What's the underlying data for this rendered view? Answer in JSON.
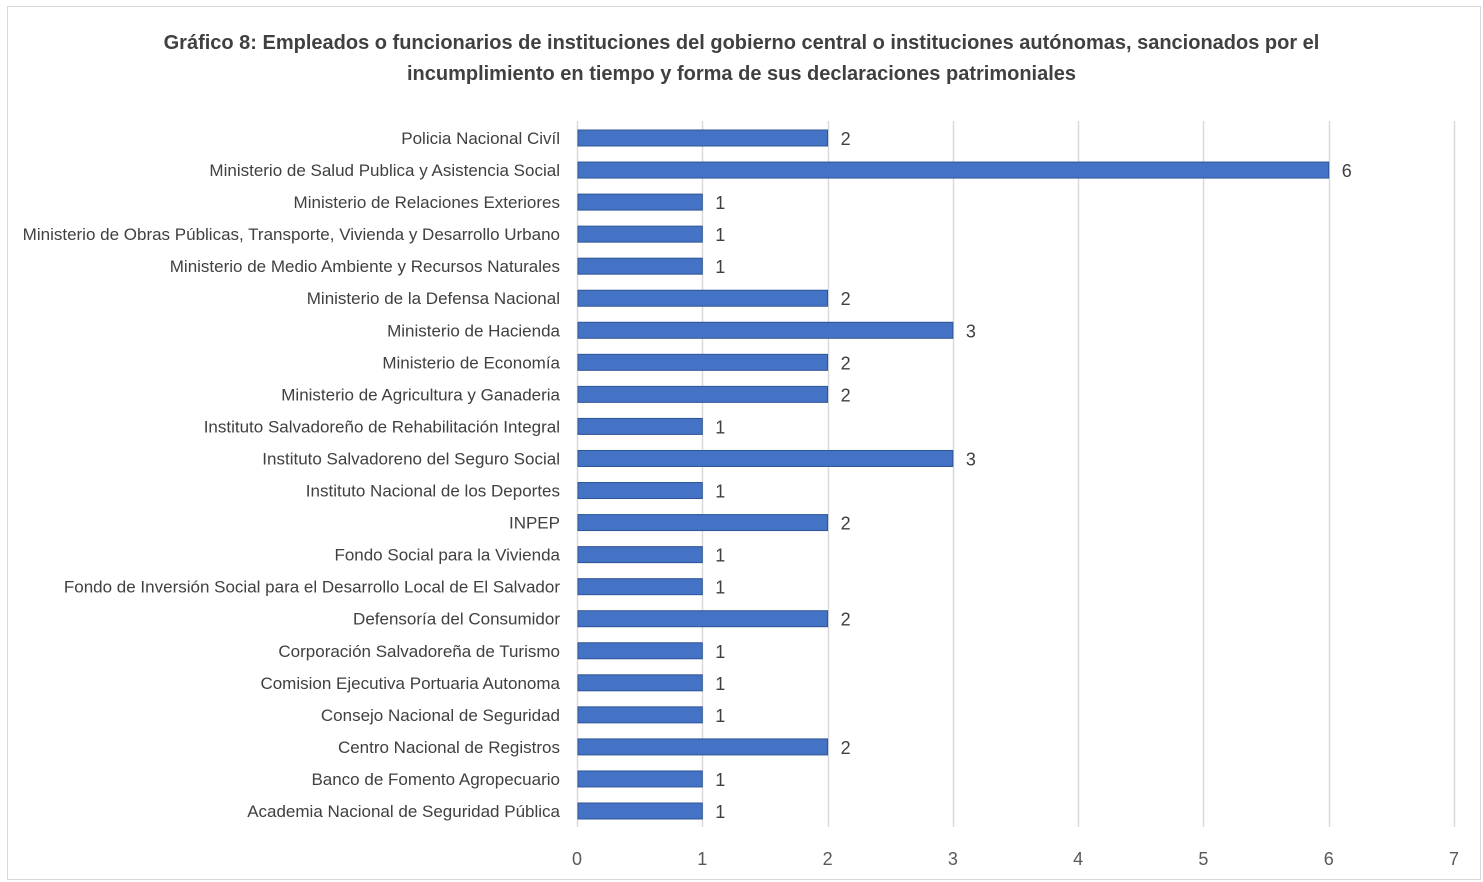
{
  "chart_data": {
    "type": "bar",
    "orientation": "horizontal",
    "title": "Gráfico 8: Empleados o funcionarios de instituciones del gobierno central o instituciones autónomas, sancionados por el incumplimiento en tiempo y forma de sus declaraciones patrimoniales",
    "categories": [
      "Policia Nacional Civíl",
      "Ministerio de Salud Publica y Asistencia Social",
      "Ministerio de Relaciones Exteriores",
      "Ministerio de Obras Públicas, Transporte, Vivienda y Desarrollo Urbano",
      "Ministerio de Medio Ambiente y Recursos Naturales",
      "Ministerio de la Defensa Nacional",
      "Ministerio de Hacienda",
      "Ministerio de Economía",
      "Ministerio de Agricultura y Ganaderia",
      "Instituto Salvadoreño de Rehabilitación Integral",
      "Instituto Salvadoreno del Seguro Social",
      "Instituto Nacional de los Deportes",
      "INPEP",
      "Fondo Social para la Vivienda",
      "Fondo de Inversión Social para el Desarrollo Local de El Salvador",
      "Defensoría del Consumidor",
      "Corporación Salvadoreña de Turismo",
      "Comision Ejecutiva Portuaria Autonoma",
      "Consejo Nacional de Seguridad",
      "Centro Nacional de Registros",
      "Banco de Fomento Agropecuario",
      "Academia Nacional de Seguridad Pública"
    ],
    "values": [
      2,
      6,
      1,
      1,
      1,
      2,
      3,
      2,
      2,
      1,
      3,
      1,
      2,
      1,
      1,
      2,
      1,
      1,
      1,
      2,
      1,
      1
    ],
    "xlim": [
      0,
      7
    ],
    "xticks": [
      0,
      1,
      2,
      3,
      4,
      5,
      6,
      7
    ],
    "data_labels": true,
    "grid": "vertical",
    "legend": "none",
    "colors": {
      "bar": "#4472c4",
      "bar_edge": "#2f5597",
      "grid": "#d9d9d9",
      "text": "#404040",
      "axis_text": "#595959",
      "frame": "#d9d9d9"
    }
  }
}
